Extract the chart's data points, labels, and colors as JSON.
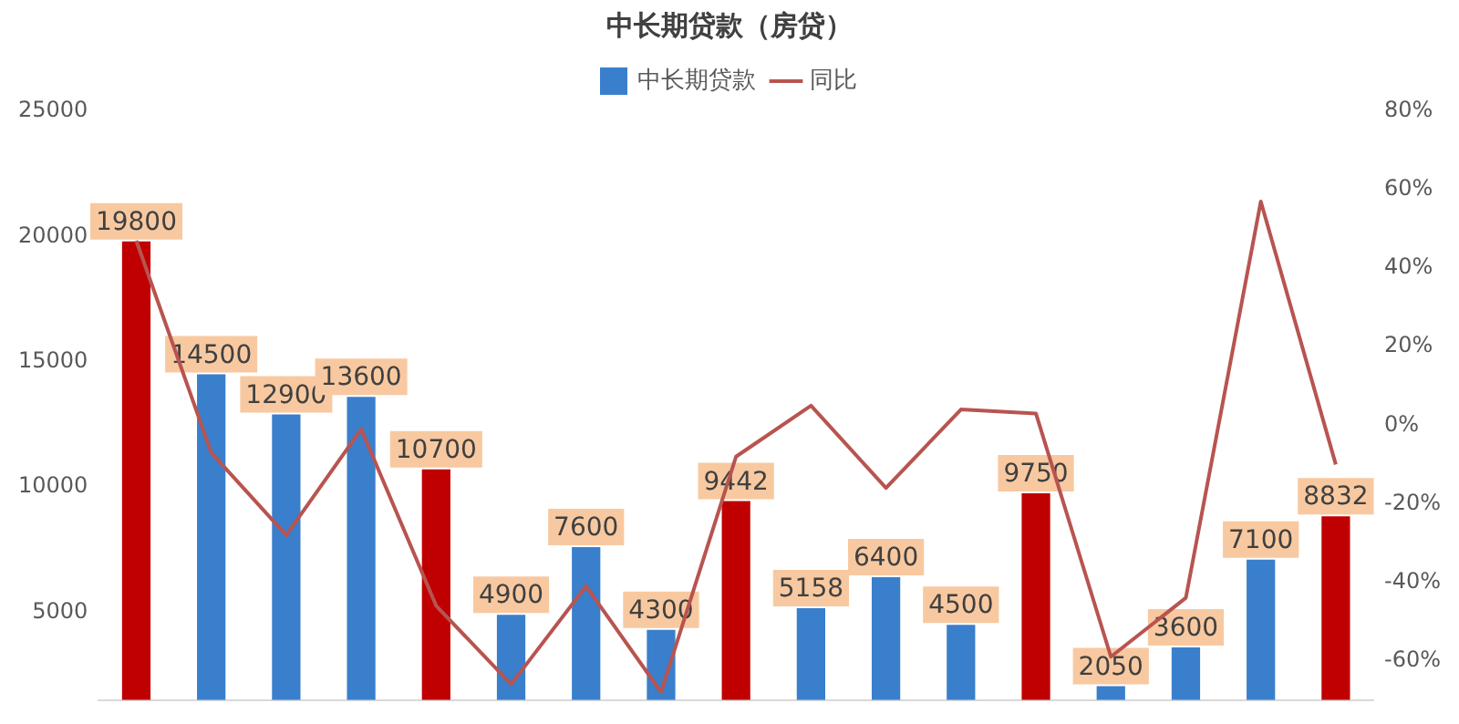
{
  "chart_data": {
    "type": "bar",
    "title": "中长期贷款（房贷）",
    "legend": "top",
    "grid": false,
    "tick_labels": "y",
    "marker": "none",
    "categories": [
      null,
      null,
      null,
      null,
      null,
      null,
      null,
      null,
      null,
      null,
      null,
      null,
      null,
      null,
      null,
      null,
      null
    ],
    "ylim": [
      1500,
      25000
    ],
    "yticks": [
      5000,
      10000,
      15000,
      20000,
      25000
    ],
    "y2lim": [
      -70,
      80
    ],
    "y2ticks": [
      {
        "value": -60,
        "label": "-60%"
      },
      {
        "value": -40,
        "label": "-40%"
      },
      {
        "value": -20,
        "label": "-20%"
      },
      {
        "value": 0,
        "label": "0%"
      },
      {
        "value": 20,
        "label": "20%"
      },
      {
        "value": 40,
        "label": "40%"
      },
      {
        "value": 60,
        "label": "60%"
      },
      {
        "value": 80,
        "label": "80%"
      }
    ],
    "series": [
      {
        "name": "中长期贷款",
        "type": "bar",
        "color": "#3a7fcc",
        "colors": [
          "#c00000",
          "#3a7fcc",
          "#3a7fcc",
          "#3a7fcc",
          "#c00000",
          "#3a7fcc",
          "#3a7fcc",
          "#3a7fcc",
          "#c00000",
          "#3a7fcc",
          "#3a7fcc",
          "#3a7fcc",
          "#c00000",
          "#3a7fcc",
          "#3a7fcc",
          "#3a7fcc",
          "#c00000"
        ],
        "values": [
          19800,
          14500,
          12900,
          13600,
          10700,
          4900,
          7600,
          4300,
          9442,
          5158,
          6400,
          4500,
          9750,
          2050,
          3600,
          7100,
          8832
        ],
        "value_labels": [
          "19800",
          "14500",
          "12900",
          "13600",
          "10700",
          "4900",
          "7600",
          "4300",
          "9442",
          "5158",
          "6400",
          "4500",
          "9750",
          "2050",
          "3600",
          "7100",
          "8832"
        ]
      },
      {
        "name": "同比",
        "type": "line",
        "axis": "y2",
        "color": "#b85450",
        "values": [
          47,
          -7,
          -28,
          -1,
          -46,
          -66,
          -41,
          -68,
          -8,
          5,
          -16,
          4,
          3,
          -59,
          -44,
          57,
          -10
        ]
      }
    ]
  }
}
